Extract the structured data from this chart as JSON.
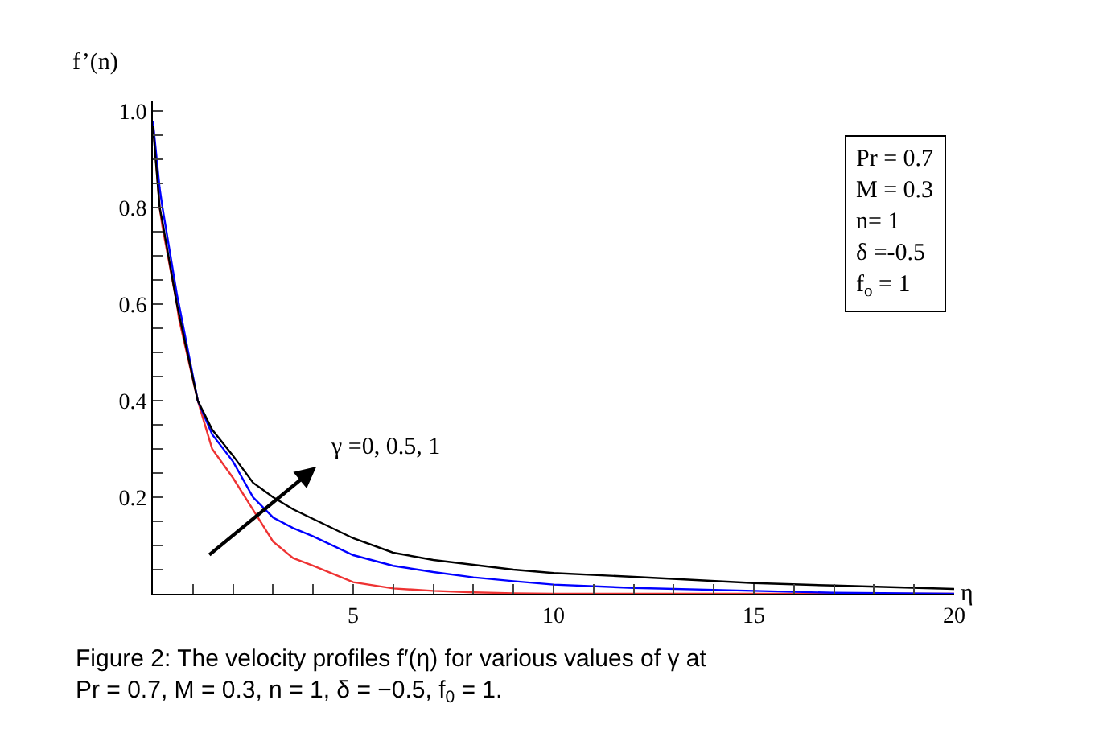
{
  "chart_data": {
    "type": "line",
    "xlabel": "η",
    "ylabel": "f’(n)",
    "x": [
      0,
      0.17,
      0.24,
      0.6,
      0.65,
      1.12,
      1.48,
      2,
      2.5,
      3,
      3.5,
      4,
      5,
      6,
      7,
      8,
      9,
      10,
      12,
      15,
      17,
      20
    ],
    "series": [
      {
        "color": "#ee3333",
        "values": [
          0.98,
          0.8,
          0.76,
          0.6,
          0.57,
          0.4,
          0.3,
          0.24,
          0.174,
          0.108,
          0.074,
          0.058,
          0.024,
          0.011,
          0.006,
          0.003,
          0.001,
          0,
          0,
          0,
          0,
          0
        ]
      },
      {
        "color": "#0000ff",
        "values": [
          0.98,
          0.84,
          0.8,
          0.62,
          0.6,
          0.4,
          0.33,
          0.274,
          0.2,
          0.158,
          0.136,
          0.119,
          0.08,
          0.058,
          0.045,
          0.034,
          0.026,
          0.019,
          0.012,
          0.006,
          0.002,
          0
        ]
      },
      {
        "color": "#000000",
        "values": [
          0.97,
          0.8,
          0.77,
          0.6,
          0.58,
          0.4,
          0.34,
          0.286,
          0.23,
          0.2,
          0.175,
          0.155,
          0.115,
          0.085,
          0.07,
          0.06,
          0.05,
          0.043,
          0.035,
          0.022,
          0.017,
          0.01
        ]
      }
    ],
    "xlim": [
      0,
      20
    ],
    "ylim": [
      0,
      1.02
    ],
    "xticks": [
      {
        "value": 1,
        "label": null
      },
      {
        "value": 2,
        "label": null
      },
      {
        "value": 3,
        "label": null
      },
      {
        "value": 4,
        "label": null
      },
      5,
      {
        "value": 6,
        "label": null
      },
      {
        "value": 7,
        "label": null
      },
      {
        "value": 8,
        "label": null
      },
      {
        "value": 9,
        "label": null
      },
      10,
      {
        "value": 11,
        "label": null
      },
      {
        "value": 12,
        "label": null
      },
      {
        "value": 13,
        "label": null
      },
      {
        "value": 14,
        "label": null
      },
      15,
      {
        "value": 16,
        "label": null
      },
      {
        "value": 17,
        "label": null
      },
      {
        "value": 18,
        "label": null
      },
      {
        "value": 19,
        "label": null
      },
      20
    ],
    "yticks": [
      {
        "value": 0.05,
        "label": null
      },
      {
        "value": 0.1,
        "label": null
      },
      {
        "value": 0.15,
        "label": null
      },
      0.2,
      {
        "value": 0.25,
        "label": null
      },
      {
        "value": 0.3,
        "label": null
      },
      {
        "value": 0.35,
        "label": null
      },
      0.4,
      {
        "value": 0.45,
        "label": null
      },
      {
        "value": 0.5,
        "label": null
      },
      {
        "value": 0.55,
        "label": null
      },
      0.6,
      {
        "value": 0.65,
        "label": null
      },
      {
        "value": 0.7,
        "label": null
      },
      {
        "value": 0.75,
        "label": null
      },
      0.8,
      {
        "value": 0.85,
        "label": null
      },
      {
        "value": 0.9,
        "label": null
      },
      {
        "value": 0.95,
        "label": null
      },
      {
        "value": 1.0,
        "label": "1.0"
      }
    ],
    "marker": "none",
    "line_style": "solid",
    "annotations": [
      "γ =0, 0.5, 1",
      "Pr = 0.7\nM = 0.3\nn= 1\nδ =-0.5\nf$_{o}$ = 1",
      "Figure 2: The velocity profiles f′(η) for various values of γ at\nPr = 0.7, M = 0.3, n = 1, δ = −0.5, f$_{0}$ = 1."
    ]
  }
}
